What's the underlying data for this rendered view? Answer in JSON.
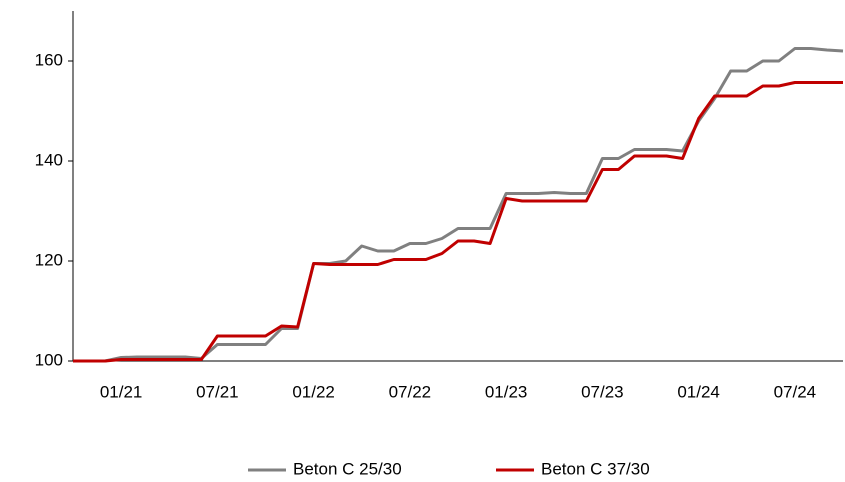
{
  "chart_data": {
    "type": "line",
    "categories": [
      null,
      null,
      null,
      "01/21",
      null,
      null,
      null,
      null,
      null,
      "07/21",
      null,
      null,
      null,
      null,
      null,
      "01/22",
      null,
      null,
      null,
      null,
      null,
      "07/22",
      null,
      null,
      null,
      null,
      null,
      "01/23",
      null,
      null,
      null,
      null,
      null,
      "07/23",
      null,
      null,
      null,
      null,
      null,
      "01/24",
      null,
      null,
      null,
      null,
      null,
      "07/24",
      null,
      null,
      null
    ],
    "series": [
      {
        "name": "Beton C 25/30",
        "color": "#808080",
        "values": [
          100,
          100,
          100,
          100.7,
          100.8,
          100.8,
          100.8,
          100.8,
          100.5,
          103.3,
          103.3,
          103.3,
          103.3,
          106.5,
          106.5,
          119.5,
          119.5,
          120,
          123,
          122,
          122,
          123.5,
          123.5,
          124.5,
          126.5,
          126.5,
          126.5,
          133.5,
          133.5,
          133.5,
          133.7,
          133.5,
          133.5,
          140.5,
          140.5,
          142.3,
          142.3,
          142.3,
          142,
          148,
          152.5,
          158,
          158,
          160,
          160,
          162.5,
          162.5,
          162.2,
          162
        ]
      },
      {
        "name": "Beton C 37/30",
        "color": "#c00000",
        "values": [
          100,
          100,
          100,
          100.3,
          100.3,
          100.3,
          100.3,
          100.3,
          100.3,
          105,
          105,
          105,
          105,
          107,
          106.8,
          119.5,
          119.3,
          119.3,
          119.3,
          119.3,
          120.3,
          120.3,
          120.3,
          121.5,
          124,
          124,
          123.5,
          132.5,
          132,
          132,
          132,
          132,
          132,
          138.3,
          138.3,
          141,
          141,
          141,
          140.5,
          148.5,
          153,
          153,
          153,
          155,
          155,
          155.7,
          155.7,
          155.7,
          155.7
        ]
      }
    ],
    "ylim": [
      100,
      170
    ],
    "yticks": [
      100,
      120,
      140,
      160
    ]
  }
}
